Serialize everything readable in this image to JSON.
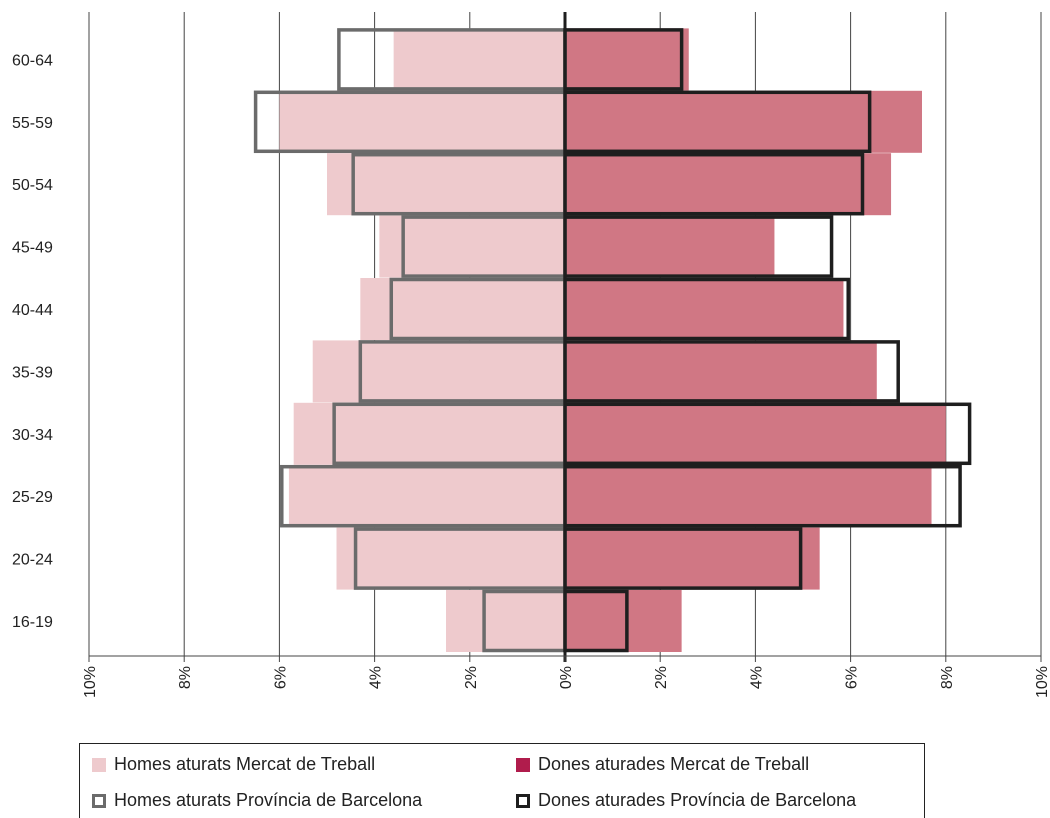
{
  "chart_data": {
    "type": "bar",
    "orientation": "horizontal",
    "layout": "population-pyramid",
    "categories": [
      "16-19",
      "20-24",
      "25-29",
      "30-34",
      "35-39",
      "40-44",
      "45-49",
      "50-54",
      "55-59",
      "60-64"
    ],
    "xlim": [
      -10,
      10
    ],
    "x_ticks": [
      -10,
      -8,
      -6,
      -4,
      -2,
      0,
      2,
      4,
      6,
      8,
      10
    ],
    "x_tick_labels": [
      "10%",
      "8%",
      "6%",
      "4%",
      "2%",
      "0%",
      "2%",
      "4%",
      "6%",
      "8%",
      "10%"
    ],
    "grid": "vertical",
    "series": [
      {
        "name": "Homes aturats Mercat de Treball",
        "side": "left",
        "style": "filled",
        "color": "#eecacd",
        "values": [
          2.5,
          4.8,
          5.8,
          5.7,
          5.3,
          4.3,
          3.9,
          5.0,
          6.0,
          3.6
        ]
      },
      {
        "name": "Dones aturades Mercat de Treball",
        "side": "right",
        "style": "filled",
        "color": "#d07784",
        "legend_color": "#b01c4c",
        "values": [
          2.45,
          5.35,
          7.7,
          8.0,
          6.55,
          5.85,
          4.4,
          6.85,
          7.5,
          2.6
        ]
      },
      {
        "name": "Homes aturats Província de Barcelona",
        "side": "left",
        "style": "outline",
        "color": "#6b6b6b",
        "values": [
          1.7,
          4.4,
          5.95,
          4.85,
          4.3,
          3.65,
          3.4,
          4.45,
          6.5,
          4.75
        ]
      },
      {
        "name": "Dones aturades Província de Barcelona",
        "side": "right",
        "style": "outline",
        "color": "#1e1e1e",
        "values": [
          1.3,
          4.95,
          8.3,
          8.5,
          7.0,
          5.95,
          5.6,
          6.25,
          6.4,
          2.45
        ]
      }
    ],
    "legend": {
      "position": "bottom",
      "items": [
        {
          "label": "Homes aturats Mercat de Treball",
          "series": 0
        },
        {
          "label": "Dones aturades Mercat de Treball",
          "series": 1
        },
        {
          "label": "Homes aturats Província de Barcelona",
          "series": 2
        },
        {
          "label": "Dones aturades Província de Barcelona",
          "series": 3
        }
      ]
    }
  }
}
